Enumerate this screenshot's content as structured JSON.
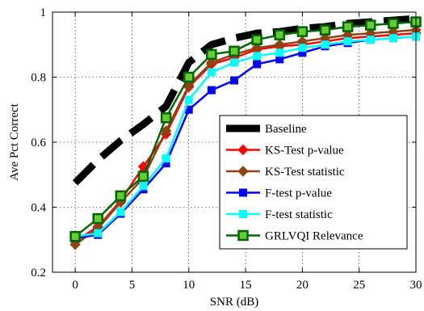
{
  "chart_data": {
    "type": "line",
    "title": "",
    "xlabel": "SNR (dB)",
    "ylabel": "Ave Pct Correct",
    "xlim": [
      -2,
      30
    ],
    "ylim": [
      0.2,
      1.0
    ],
    "xticks": [
      0,
      5,
      10,
      15,
      20,
      25,
      30
    ],
    "yticks": [
      0.2,
      0.4,
      0.6,
      0.8,
      1.0
    ],
    "xtick_labels": [
      "0",
      "5",
      "10",
      "15",
      "20",
      "25",
      "30"
    ],
    "ytick_labels": [
      "0.2",
      "0.4",
      "0.6",
      "0.8",
      "1"
    ],
    "grid": true,
    "legend_position": "lower-right",
    "x": [
      0,
      2,
      4,
      6,
      8,
      10,
      12,
      14,
      16,
      18,
      20,
      22,
      24,
      26,
      28,
      30
    ],
    "series": [
      {
        "name": "Baseline",
        "color": "#000000",
        "style": "dashed-thick",
        "marker": "none",
        "values": [
          0.475,
          0.545,
          0.605,
          0.655,
          0.71,
          0.845,
          0.9,
          0.92,
          0.935,
          0.94,
          0.95,
          0.955,
          0.965,
          0.97,
          0.975,
          0.98
        ]
      },
      {
        "name": "KS-Test p-value",
        "color": "#ff0000",
        "style": "solid",
        "marker": "diamond",
        "values": [
          0.295,
          0.34,
          0.42,
          0.525,
          0.625,
          0.77,
          0.84,
          0.86,
          0.885,
          0.895,
          0.9,
          0.91,
          0.92,
          0.925,
          0.93,
          0.935
        ]
      },
      {
        "name": "KS-Test statistic",
        "color": "#8b4513",
        "style": "solid",
        "marker": "diamond",
        "values": [
          0.285,
          0.335,
          0.415,
          0.49,
          0.635,
          0.775,
          0.845,
          0.87,
          0.89,
          0.9,
          0.91,
          0.92,
          0.93,
          0.935,
          0.94,
          0.945
        ]
      },
      {
        "name": "F-test p-value",
        "color": "#0000ff",
        "style": "solid",
        "marker": "square",
        "values": [
          0.305,
          0.315,
          0.38,
          0.455,
          0.535,
          0.7,
          0.76,
          0.79,
          0.84,
          0.855,
          0.875,
          0.895,
          0.905,
          0.915,
          0.92,
          0.925
        ]
      },
      {
        "name": "F-test statistic",
        "color": "#00ffff",
        "style": "solid",
        "marker": "square",
        "values": [
          0.31,
          0.32,
          0.385,
          0.465,
          0.55,
          0.73,
          0.815,
          0.845,
          0.865,
          0.875,
          0.89,
          0.9,
          0.91,
          0.915,
          0.92,
          0.925
        ]
      },
      {
        "name": "GRLVQI Relevance",
        "color": "#006400",
        "style": "solid",
        "marker": "square",
        "values": [
          0.31,
          0.365,
          0.435,
          0.495,
          0.675,
          0.8,
          0.87,
          0.88,
          0.915,
          0.93,
          0.94,
          0.945,
          0.955,
          0.96,
          0.965,
          0.97
        ]
      }
    ]
  }
}
